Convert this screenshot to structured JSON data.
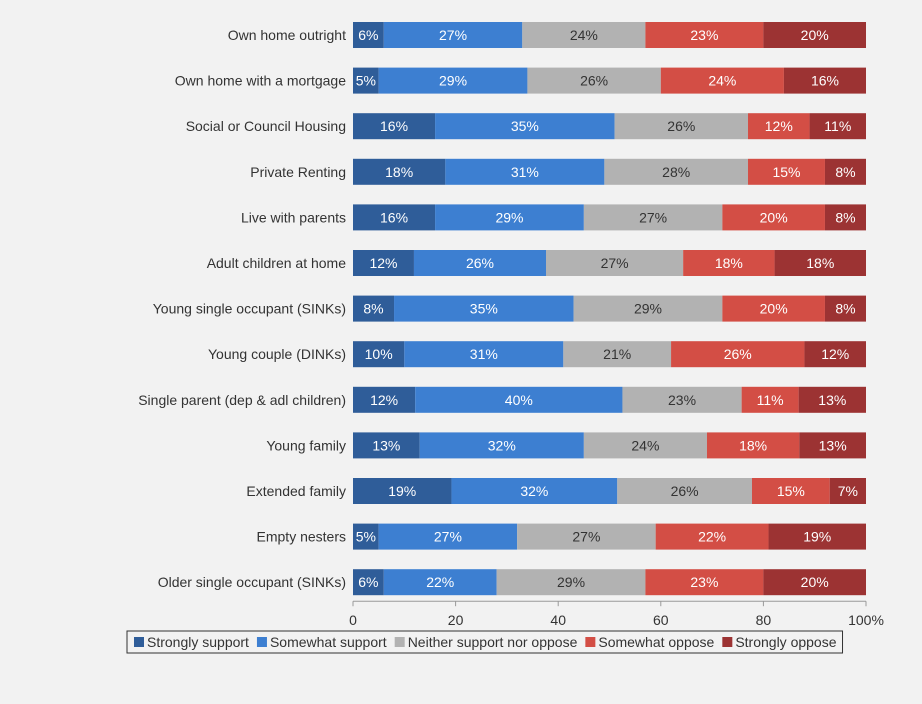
{
  "chart_data": {
    "type": "bar",
    "orientation": "horizontal",
    "stacked": true,
    "title": "",
    "xlabel": "",
    "ylabel": "",
    "xlim": [
      0,
      100
    ],
    "x_ticks": [
      "0",
      "20",
      "40",
      "60",
      "80",
      "100%"
    ],
    "grid": false,
    "legend_position": "bottom",
    "categories": [
      "Own home outright",
      "Own home with a mortgage",
      "Social or Council Housing",
      "Private Renting",
      "Live with parents",
      "Adult children at home",
      "Young single occupant (SINKs)",
      "Young couple (DINKs)",
      "Single parent (dep & adl children)",
      "Young family",
      "Extended family",
      "Empty nesters",
      "Older single occupant (SINKs)"
    ],
    "series": [
      {
        "name": "Strongly support",
        "color": "#2f5d99",
        "values": [
          6,
          5,
          16,
          18,
          16,
          12,
          8,
          10,
          12,
          13,
          19,
          5,
          6
        ]
      },
      {
        "name": "Somewhat support",
        "color": "#3d7fd1",
        "values": [
          27,
          29,
          35,
          31,
          29,
          26,
          35,
          31,
          40,
          32,
          32,
          27,
          22
        ]
      },
      {
        "name": "Neither support nor oppose",
        "color": "#b2b2b2",
        "values": [
          24,
          26,
          26,
          28,
          27,
          27,
          29,
          21,
          23,
          24,
          26,
          27,
          29
        ]
      },
      {
        "name": "Somewhat oppose",
        "color": "#d34e45",
        "values": [
          23,
          24,
          12,
          15,
          20,
          18,
          20,
          26,
          11,
          18,
          15,
          22,
          23
        ]
      },
      {
        "name": "Strongly oppose",
        "color": "#9c3333",
        "values": [
          20,
          16,
          11,
          8,
          8,
          18,
          8,
          12,
          13,
          13,
          7,
          19,
          20
        ]
      }
    ],
    "value_labels": [
      [
        "6%",
        "5%",
        "16%",
        "18%",
        "16%",
        "12%",
        "8%",
        "10%",
        "12%",
        "13%",
        "19%",
        "5%",
        "6%"
      ],
      [
        "27%",
        "29%",
        "35%",
        "31%",
        "29%",
        "26%",
        "35%",
        "31%",
        "40%",
        "32%",
        "32%",
        "27%",
        "22%"
      ],
      [
        "24%",
        "26%",
        "26%",
        "28%",
        "27%",
        "27%",
        "29%",
        "21%",
        "23%",
        "24%",
        "26%",
        "27%",
        "29%"
      ],
      [
        "23%",
        "24%",
        "12%",
        "15%",
        "20%",
        "18%",
        "20%",
        "26%",
        "11%",
        "18%",
        "15%",
        "22%",
        "23%"
      ],
      [
        "20%",
        "16%",
        "11%",
        "8%",
        "8%",
        "18%",
        "8%",
        "12%",
        "13%",
        "13%",
        "7%",
        "19%",
        "20%"
      ]
    ]
  }
}
